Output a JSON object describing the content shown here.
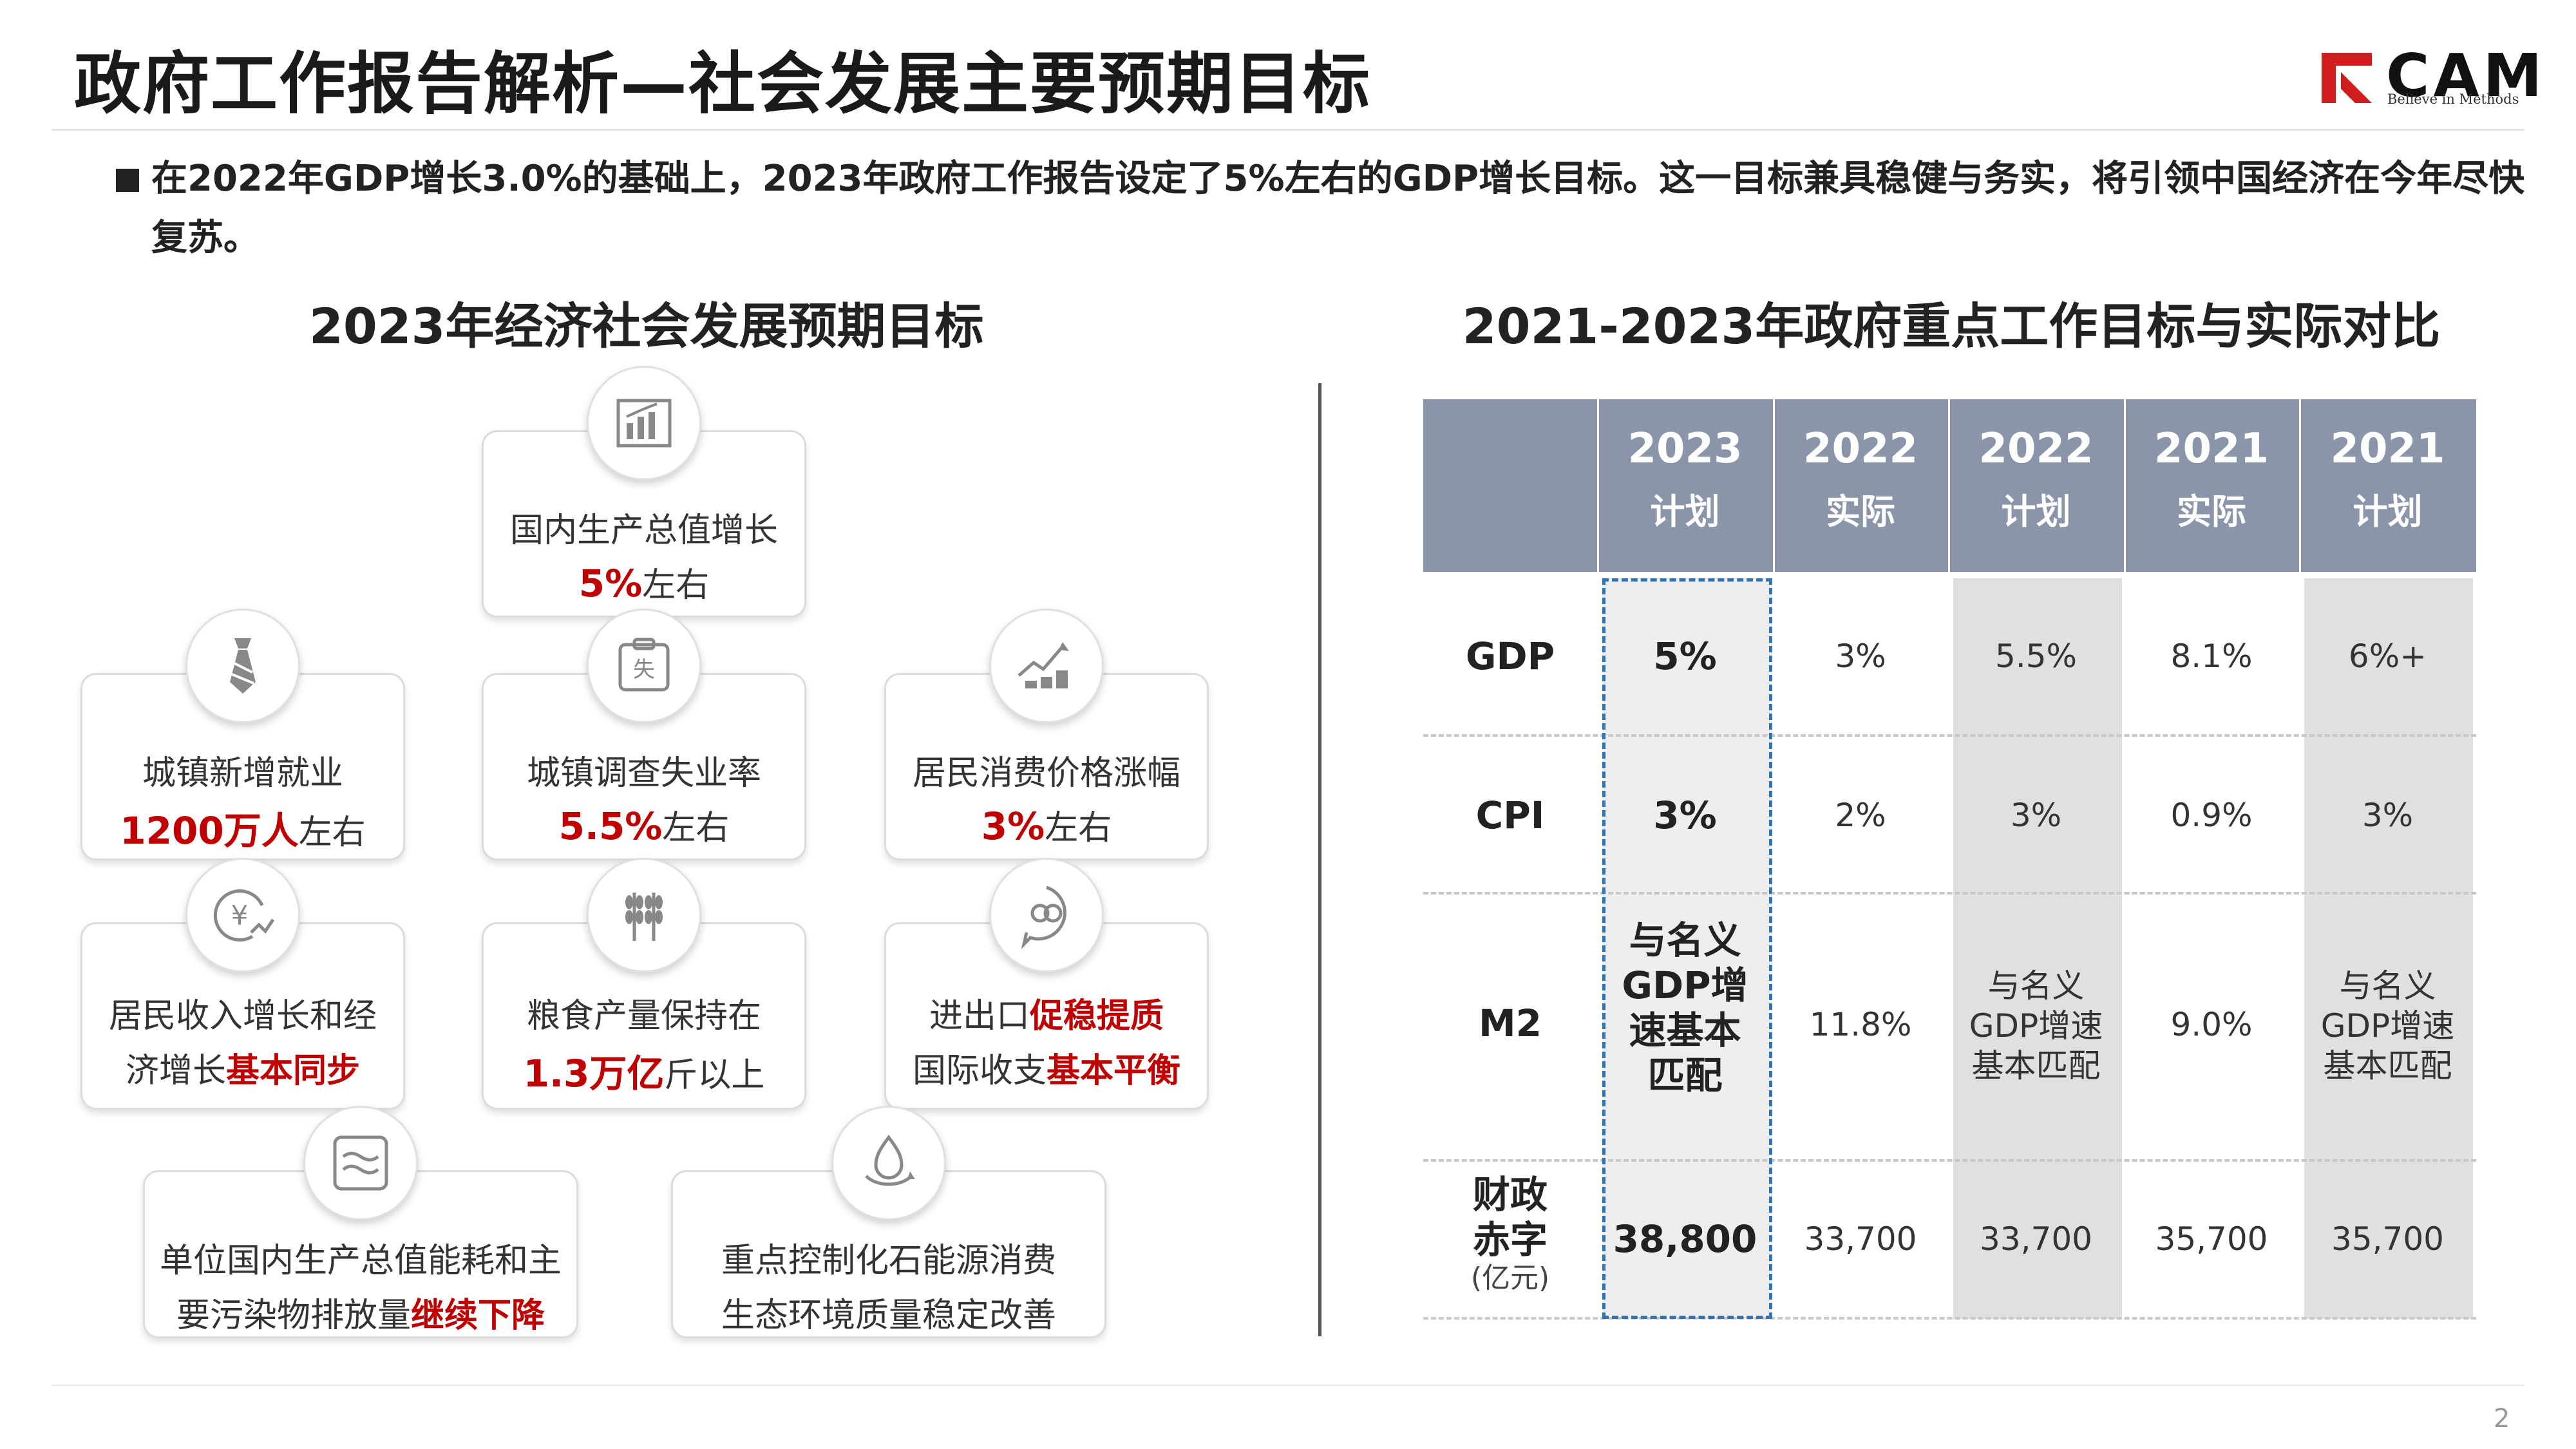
{
  "header": {
    "title": "政府工作报告解析—社会发展主要预期目标",
    "logo": {
      "brand": "CAM",
      "tagline": "Believe in Methods"
    }
  },
  "intro": "在2022年GDP增长3.0%的基础上，2023年政府工作报告设定了5%左右的GDP增长目标。这一目标兼具稳健与务实，将引领中国经济在今年尽快复苏。",
  "left": {
    "title": "2023年经济社会发展预期目标",
    "cards": [
      {
        "icon": "bar-chart-icon",
        "label": "国内生产总值增长",
        "value": "5%",
        "suffix": "左右"
      },
      {
        "icon": "tie-icon",
        "label": "城镇新增就业",
        "value": "1200万人",
        "suffix": "左右"
      },
      {
        "icon": "unemployment-icon",
        "label": "城镇调查失业率",
        "value": "5.5%",
        "suffix": "左右"
      },
      {
        "icon": "coins-trend-icon",
        "label": "居民消费价格涨幅",
        "value": "3%",
        "suffix": "左右"
      },
      {
        "icon": "yuan-trend-icon",
        "line1": "居民收入增长和经",
        "line2_prefix": "济增长",
        "line2_red": "基本同步"
      },
      {
        "icon": "wheat-icon",
        "line1": "粮食产量保持在",
        "value": "1.3万亿",
        "suffix": "斤以上"
      },
      {
        "icon": "trade-icon",
        "line1_prefix": "进出口",
        "line1_red": "促稳提质",
        "line2_prefix": "国际收支",
        "line2_red": "基本平衡"
      },
      {
        "icon": "energy-wave-icon",
        "line1": "单位国内生产总值能耗和主",
        "line2_prefix": "要污染物排放量",
        "line2_red": "继续下降"
      },
      {
        "icon": "water-drop-icon",
        "line1": "重点控制化石能源消费",
        "line2": "生态环境质量稳定改善"
      }
    ]
  },
  "right": {
    "title": "2021-2023年政府重点工作目标与实际对比",
    "table": {
      "columns": [
        {
          "year": "2023",
          "type": "计划"
        },
        {
          "year": "2022",
          "type": "实际"
        },
        {
          "year": "2022",
          "type": "计划"
        },
        {
          "year": "2021",
          "type": "实际"
        },
        {
          "year": "2021",
          "type": "计划"
        }
      ],
      "rows": [
        {
          "label": "GDP",
          "values": [
            "5%",
            "3%",
            "5.5%",
            "8.1%",
            "6%+"
          ]
        },
        {
          "label": "CPI",
          "values": [
            "3%",
            "2%",
            "3%",
            "0.9%",
            "3%"
          ]
        },
        {
          "label": "M2",
          "values": [
            [
              "与名义",
              "GDP增",
              "速基本",
              "匹配"
            ],
            [
              "11.8%"
            ],
            [
              "与名义",
              "GDP增速",
              "基本匹配"
            ],
            [
              "9.0%"
            ],
            [
              "与名义",
              "GDP增速",
              "基本匹配"
            ]
          ]
        },
        {
          "label": [
            "财政",
            "赤字"
          ],
          "unit": "(亿元)",
          "values": [
            "38,800",
            "33,700",
            "33,700",
            "35,700",
            "35,700"
          ]
        }
      ]
    }
  },
  "footer": {
    "page": "2"
  },
  "colors": {
    "accent_red": "#c00000",
    "header_bg": "#8b95aa",
    "shade": "#e0e0e0",
    "highlight": "#2e75b6"
  }
}
